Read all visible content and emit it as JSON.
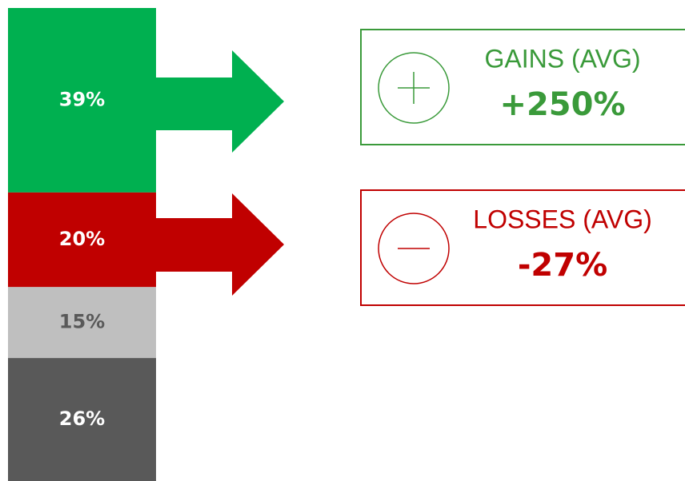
{
  "chart_data": {
    "type": "stacked_bar",
    "values": [
      39,
      20,
      15,
      26
    ],
    "value_labels": [
      "39%",
      "20%",
      "15%",
      "26%"
    ],
    "colors": [
      "#00b050",
      "#c00000",
      "#bfbfbf",
      "#595959"
    ],
    "label_colors": [
      "#ffffff",
      "#ffffff",
      "#595959",
      "#ffffff"
    ],
    "annotations": [
      {
        "title": "GAINS (AVG)",
        "value": "+250%",
        "color": "#3a9a3a"
      },
      {
        "title": "LOSSES (AVG)",
        "value": "-27%",
        "color": "#c00000"
      }
    ]
  }
}
